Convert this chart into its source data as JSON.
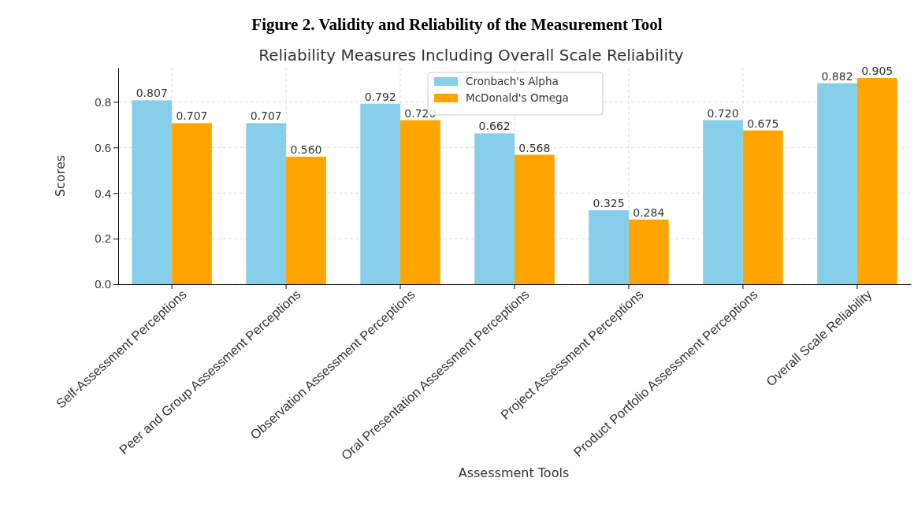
{
  "chart_data": {
    "type": "bar",
    "title": "Figure 2. Validity and Reliability of the Measurement Tool",
    "subtitle": "Reliability Measures Including Overall Scale Reliability",
    "xlabel": "Assessment Tools",
    "ylabel": "Scores",
    "categories": [
      "Self-Assessment Perceptions",
      "Peer and Group Assessment Perceptions",
      "Observation Assessment Perceptions",
      "Oral Presentation Assessment Perceptions",
      "Project Assessment Perceptions",
      "Product Portfolio Assessment Perceptions",
      "Overall Scale Reliability"
    ],
    "series": [
      {
        "name": "Cronbach's Alpha",
        "color": "#87ceeb",
        "values": [
          0.807,
          0.707,
          0.792,
          0.662,
          0.325,
          0.72,
          0.882
        ],
        "value_labels": [
          "0.807",
          "0.707",
          "0.792",
          "0.662",
          "0.325",
          "0.720",
          "0.882"
        ]
      },
      {
        "name": "McDonald's Omega",
        "color": "#ffa500",
        "values": [
          0.707,
          0.56,
          0.72,
          0.568,
          0.284,
          0.675,
          0.905
        ],
        "value_labels": [
          "0.707",
          "0.560",
          "0.720",
          "0.568",
          "0.284",
          "0.675",
          "0.905"
        ]
      }
    ],
    "ylim": [
      0,
      0.95
    ],
    "yticks": [
      {
        "value": 0,
        "label": "0.0"
      },
      0.2,
      0.4,
      0.6,
      0.8
    ],
    "grid": true,
    "legend": "top"
  }
}
